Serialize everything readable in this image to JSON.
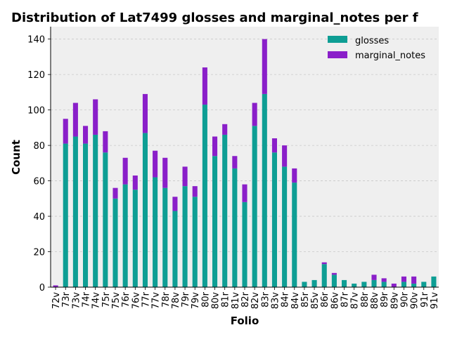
{
  "chart_data": {
    "type": "bar",
    "stacked": true,
    "title": "Distribution of Lat7499 glosses and marginal_notes per f",
    "xlabel": "Folio",
    "ylabel": "Count",
    "ylim": [
      0,
      147
    ],
    "yticks": [
      0,
      20,
      40,
      60,
      80,
      100,
      120,
      140
    ],
    "grid": true,
    "legend_position": "top-right",
    "categories": [
      "72v",
      "73r",
      "73v",
      "74r",
      "74v",
      "75r",
      "75v",
      "76r",
      "76v",
      "77r",
      "77v",
      "78r",
      "78v",
      "79r",
      "79v",
      "80r",
      "80v",
      "81r",
      "81v",
      "82r",
      "82v",
      "83r",
      "83v",
      "84r",
      "84v",
      "85r",
      "85v",
      "86r",
      "86v",
      "87r",
      "87v",
      "88r",
      "88v",
      "89r",
      "89v",
      "90r",
      "90v",
      "91r",
      "91v"
    ],
    "series": [
      {
        "name": "glosses",
        "color": "#0e9e94",
        "values": [
          0,
          81,
          85,
          81,
          86,
          76,
          50,
          58,
          55,
          87,
          62,
          56,
          43,
          57,
          51,
          103,
          74,
          86,
          67,
          48,
          91,
          109,
          76,
          68,
          59,
          3,
          4,
          13,
          7,
          4,
          2,
          3,
          4,
          3,
          0,
          3,
          2,
          3,
          6
        ]
      },
      {
        "name": "marginal_notes",
        "color": "#8a1fc9",
        "values": [
          1,
          14,
          19,
          10,
          20,
          12,
          6,
          15,
          8,
          22,
          15,
          17,
          8,
          11,
          6,
          21,
          11,
          6,
          7,
          10,
          13,
          31,
          8,
          12,
          8,
          0,
          0,
          1,
          1,
          0,
          0,
          0,
          3,
          2,
          2,
          3,
          4,
          0,
          0
        ]
      }
    ]
  }
}
